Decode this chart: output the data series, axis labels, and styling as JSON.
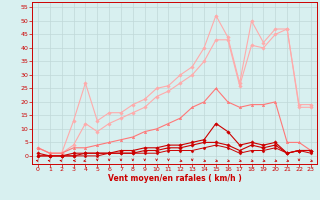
{
  "bg_color": "#d8f0f0",
  "grid_color": "#c0d8d8",
  "title": "Vent moyen/en rafales ( km/h )",
  "x_ticks": [
    0,
    1,
    2,
    3,
    4,
    5,
    6,
    7,
    8,
    9,
    10,
    11,
    12,
    13,
    14,
    15,
    16,
    17,
    18,
    19,
    20,
    21,
    22,
    23
  ],
  "y_ticks": [
    0,
    5,
    10,
    15,
    20,
    25,
    30,
    35,
    40,
    45,
    50,
    55
  ],
  "ylim": [
    -3,
    57
  ],
  "xlim": [
    -0.5,
    23.5
  ],
  "line1": {
    "color": "#ffaaaa",
    "x": [
      0,
      1,
      2,
      3,
      4,
      5,
      6,
      7,
      8,
      9,
      10,
      11,
      12,
      13,
      14,
      15,
      16,
      17,
      18,
      19,
      20,
      21,
      22,
      23
    ],
    "y": [
      3,
      1,
      1,
      13,
      27,
      13,
      16,
      16,
      19,
      21,
      25,
      26,
      30,
      33,
      40,
      52,
      44,
      27,
      50,
      42,
      47,
      47,
      19,
      19
    ],
    "marker": "D",
    "markersize": 1.8,
    "linewidth": 0.8
  },
  "line2": {
    "color": "#ffaaaa",
    "x": [
      0,
      1,
      2,
      3,
      4,
      5,
      6,
      7,
      8,
      9,
      10,
      11,
      12,
      13,
      14,
      15,
      16,
      17,
      18,
      19,
      20,
      21,
      22,
      23
    ],
    "y": [
      3,
      1,
      1,
      4,
      12,
      9,
      12,
      14,
      16,
      18,
      22,
      24,
      27,
      30,
      35,
      43,
      43,
      26,
      41,
      40,
      45,
      47,
      18,
      18
    ],
    "marker": "D",
    "markersize": 1.8,
    "linewidth": 0.8
  },
  "line3": {
    "color": "#ff7777",
    "x": [
      0,
      1,
      2,
      3,
      4,
      5,
      6,
      7,
      8,
      9,
      10,
      11,
      12,
      13,
      14,
      15,
      16,
      17,
      18,
      19,
      20,
      21,
      22,
      23
    ],
    "y": [
      3,
      1,
      1,
      3,
      3,
      4,
      5,
      6,
      7,
      9,
      10,
      12,
      14,
      18,
      20,
      25,
      20,
      18,
      19,
      19,
      20,
      5,
      5,
      2
    ],
    "marker": "^",
    "markersize": 1.8,
    "linewidth": 0.8
  },
  "line4": {
    "color": "#cc0000",
    "x": [
      0,
      1,
      2,
      3,
      4,
      5,
      6,
      7,
      8,
      9,
      10,
      11,
      12,
      13,
      14,
      15,
      16,
      17,
      18,
      19,
      20,
      21,
      22,
      23
    ],
    "y": [
      1,
      0,
      0,
      1,
      1,
      1,
      1,
      2,
      2,
      3,
      3,
      4,
      4,
      5,
      6,
      12,
      9,
      4,
      5,
      4,
      5,
      1,
      2,
      2
    ],
    "marker": "D",
    "markersize": 1.8,
    "linewidth": 0.8
  },
  "line5": {
    "color": "#cc0000",
    "x": [
      0,
      1,
      2,
      3,
      4,
      5,
      6,
      7,
      8,
      9,
      10,
      11,
      12,
      13,
      14,
      15,
      16,
      17,
      18,
      19,
      20,
      21,
      22,
      23
    ],
    "y": [
      0,
      0,
      0,
      0,
      1,
      1,
      1,
      1,
      1,
      2,
      2,
      3,
      3,
      4,
      5,
      5,
      4,
      2,
      4,
      3,
      4,
      1,
      2,
      2
    ],
    "marker": "D",
    "markersize": 1.8,
    "linewidth": 0.8
  },
  "line6": {
    "color": "#cc0000",
    "x": [
      0,
      1,
      2,
      3,
      4,
      5,
      6,
      7,
      8,
      9,
      10,
      11,
      12,
      13,
      14,
      15,
      16,
      17,
      18,
      19,
      20,
      21,
      22,
      23
    ],
    "y": [
      0,
      0,
      0,
      0,
      0,
      0,
      1,
      1,
      1,
      1,
      1,
      2,
      2,
      2,
      3,
      4,
      3,
      1,
      2,
      2,
      3,
      1,
      2,
      1
    ],
    "marker": "D",
    "markersize": 1.5,
    "linewidth": 0.7
  },
  "wind_arrows": {
    "color": "#cc0000",
    "x": [
      0,
      1,
      2,
      3,
      4,
      5,
      6,
      7,
      8,
      9,
      10,
      11,
      12,
      13,
      14,
      15,
      16,
      17,
      18,
      19,
      20,
      21,
      22,
      23
    ],
    "angles_deg": [
      225,
      225,
      225,
      270,
      315,
      0,
      0,
      0,
      0,
      0,
      0,
      0,
      45,
      0,
      45,
      45,
      45,
      45,
      45,
      45,
      45,
      45,
      0,
      45
    ]
  }
}
